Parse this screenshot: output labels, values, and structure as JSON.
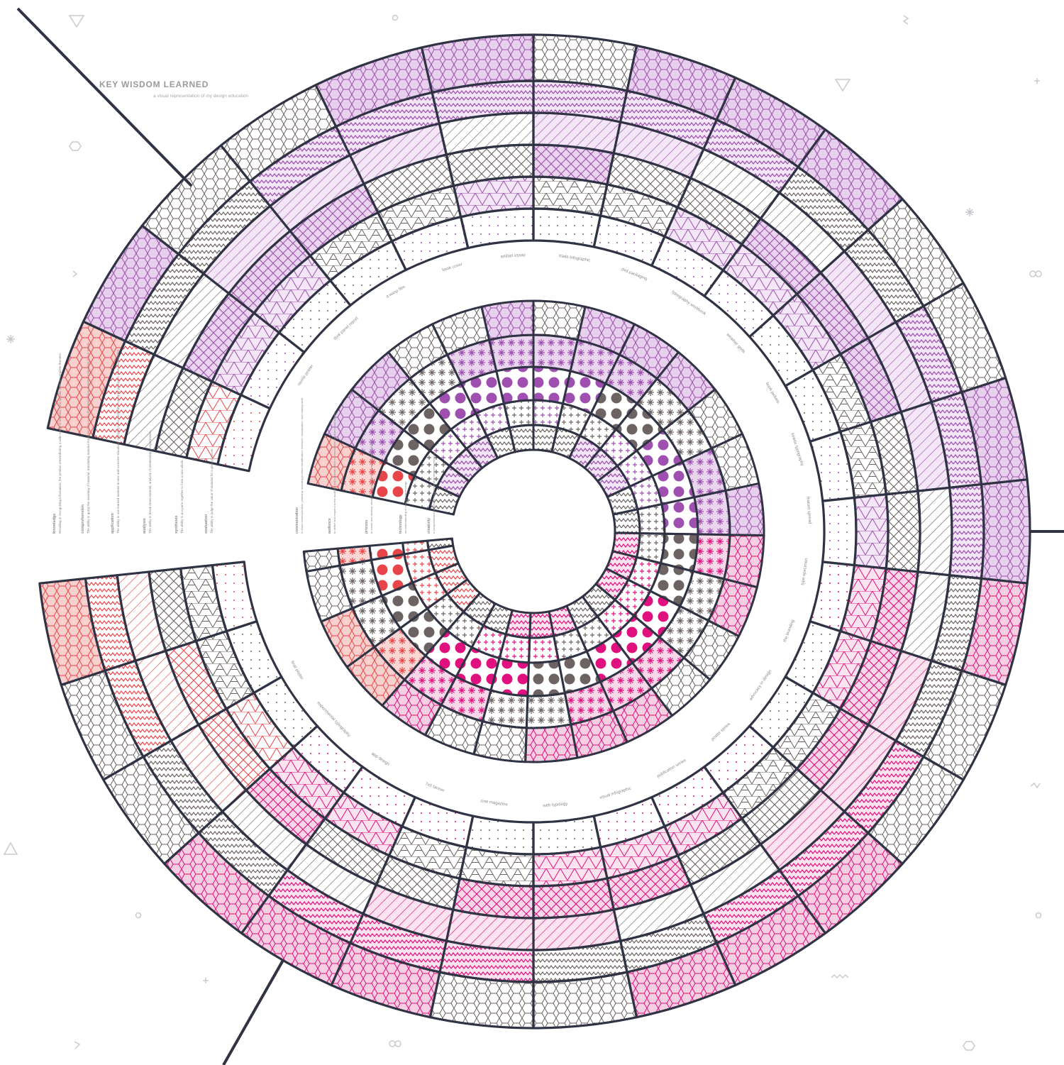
{
  "title": "KEY WISDOM LEARNED",
  "subtitle": "a visual representation of my design education",
  "outer_ring": {
    "project_labels": [
      "ravine poster",
      "dual panel report",
      "a wasp film",
      "book cover",
      "artifact essay",
      "trade infographic",
      "dvd packaging",
      "typography workbook",
      "weather grids",
      "book jackets",
      "kinetic typography",
      "feature spread",
      "type specimen",
      "the branding",
      "advocacy in design",
      "poster series",
      "publication series",
      "visual infographic",
      "web typology",
      "zine magazine",
      "7x5 farmer",
      "app design",
      "experimental typography",
      "final poster"
    ]
  },
  "left_legend": [
    {
      "heading": "knowledge",
      "text": "Recalling or recognizing information, the product remembering a wide range of material, from specific facts to complete theories."
    },
    {
      "heading": "comprehension",
      "text": "The ability to grasp the meaning of material, translating material from one form to another, interpreting material, estimating future trends."
    },
    {
      "heading": "application",
      "text": "The ability to use learned material in new and concrete situations. Applying rules, methods, concepts, principles, laws and theories."
    },
    {
      "heading": "analysis",
      "text": "The ability to break down material, analysis of relationships, organization."
    },
    {
      "heading": "synthesis",
      "text": "The ability to put parts together to form a new whole."
    },
    {
      "heading": "evaluation",
      "text": "The ability to judge the value of material for a given purpose."
    }
  ],
  "inner_legend": [
    {
      "heading": "communication",
      "text": "to share communication, planning, including problem identification, research, visualization, and making work."
    },
    {
      "heading": "audience",
      "text": "to define and respond to the audience and contexts which communication solutions must address."
    },
    {
      "heading": "process",
      "text": "to create and develop visual form in response to communication problems."
    },
    {
      "heading": "technology",
      "text": "an understanding of tools and technology."
    },
    {
      "heading": "creativity",
      "text": "a comprehension of design, business and professional practices."
    }
  ],
  "colors": {
    "outline": "#2f3344",
    "gray": "#6e6363",
    "purple": "#9e4fb0",
    "magenta": "#e0107e",
    "coral": "#e8454a"
  },
  "shown_as_rings": "Concentric segmented rings; each cell filled with a colored texture pattern (hexagon, zigzag, diagonal hatch, crosshatch, triangle grid, dots, stars, polka dots). Colors shift from purple (top) to magenta (right/bottom) to coral (bottom-left), with gray cells interspersed.",
  "decorative_icons": [
    "triangle-icon",
    "hexagon-icon",
    "circle-icon",
    "asterisk-icon",
    "squiggle-icon",
    "infinity-icon",
    "plus-icon"
  ]
}
